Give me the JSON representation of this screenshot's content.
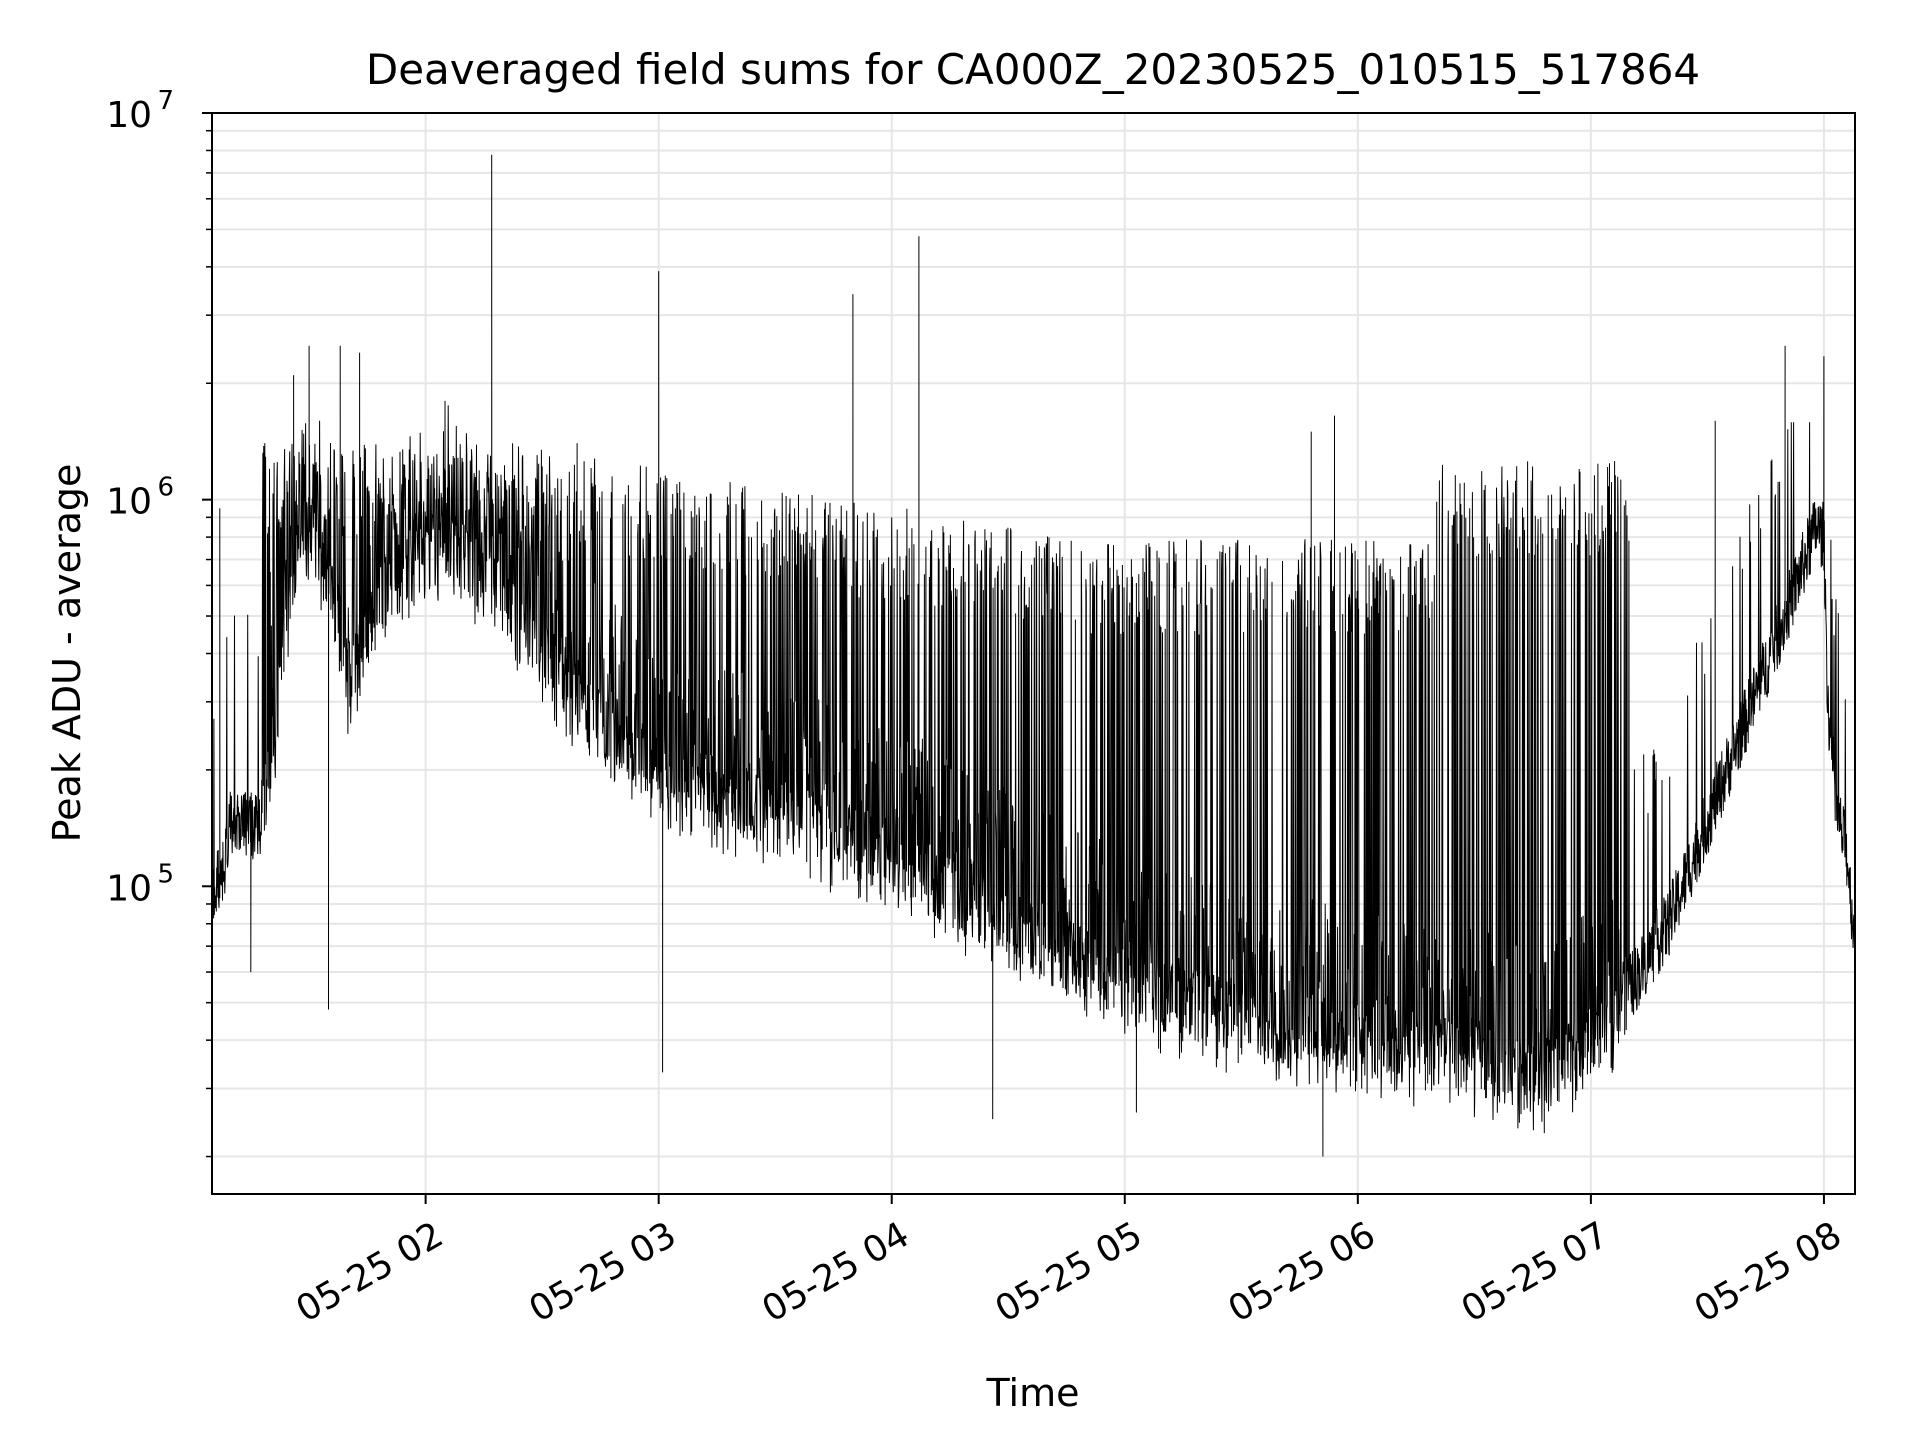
{
  "chart_data": {
    "type": "line",
    "title": "Deaveraged field sums for CA000Z_20230525_010515_517864",
    "xlabel": "Time",
    "ylabel": "Peak ADU - average",
    "yscale": "log",
    "ylim": [
      16000,
      10000000
    ],
    "xlim": [
      "2023-05-25 01:05",
      "2023-05-25 08:08"
    ],
    "y_ticks": [
      {
        "value": 100000,
        "base": "10",
        "exp": "5"
      },
      {
        "value": 1000000,
        "base": "10",
        "exp": "6"
      },
      {
        "value": 10000000,
        "base": "10",
        "exp": "7"
      }
    ],
    "x_ticks": [
      {
        "t": "2023-05-25 02:00",
        "label": "05-25 02"
      },
      {
        "t": "2023-05-25 03:00",
        "label": "05-25 03"
      },
      {
        "t": "2023-05-25 04:00",
        "label": "05-25 04"
      },
      {
        "t": "2023-05-25 05:00",
        "label": "05-25 05"
      },
      {
        "t": "2023-05-25 06:00",
        "label": "05-25 06"
      },
      {
        "t": "2023-05-25 07:00",
        "label": "05-25 07"
      },
      {
        "t": "2023-05-25 08:00",
        "label": "05-25 08"
      }
    ],
    "grid": true,
    "legend": "none",
    "line_color": "#000000",
    "grid_color": "#e6e6e6",
    "series": [
      {
        "baseline": [
          [
            "2023-05-25 01:05",
            95000
          ],
          [
            "2023-05-25 01:08",
            110000
          ],
          [
            "2023-05-25 01:10",
            150000
          ],
          [
            "2023-05-25 01:17",
            140000
          ],
          [
            "2023-05-25 01:20",
            200000
          ],
          [
            "2023-05-25 01:25",
            600000
          ],
          [
            "2023-05-25 01:30",
            850000
          ],
          [
            "2023-05-25 01:35",
            650000
          ],
          [
            "2023-05-25 01:40",
            350000
          ],
          [
            "2023-05-25 01:50",
            600000
          ],
          [
            "2023-05-25 02:05",
            800000
          ],
          [
            "2023-05-25 02:20",
            550000
          ],
          [
            "2023-05-25 02:40",
            300000
          ],
          [
            "2023-05-25 03:00",
            200000
          ],
          [
            "2023-05-25 03:30",
            150000
          ],
          [
            "2023-05-25 04:00",
            120000
          ],
          [
            "2023-05-25 04:30",
            80000
          ],
          [
            "2023-05-25 05:00",
            55000
          ],
          [
            "2023-05-25 05:30",
            45000
          ],
          [
            "2023-05-25 06:00",
            40000
          ],
          [
            "2023-05-25 06:30",
            35000
          ],
          [
            "2023-05-25 06:50",
            32000
          ],
          [
            "2023-05-25 07:05",
            45000
          ],
          [
            "2023-05-25 07:20",
            80000
          ],
          [
            "2023-05-25 07:35",
            200000
          ],
          [
            "2023-05-25 07:50",
            500000
          ],
          [
            "2023-05-25 07:58",
            850000
          ],
          [
            "2023-05-25 08:00",
            800000
          ],
          [
            "2023-05-25 08:01",
            300000
          ],
          [
            "2023-05-25 08:03",
            160000
          ],
          [
            "2023-05-25 08:06",
            120000
          ],
          [
            "2023-05-25 08:08",
            70000
          ]
        ],
        "spikes": [
          [
            "2023-05-25 01:07",
            950000
          ],
          [
            "2023-05-25 01:20",
            650000
          ],
          [
            "2023-05-25 01:26",
            2100000
          ],
          [
            "2023-05-25 01:30",
            2500000
          ],
          [
            "2023-05-25 01:38",
            2500000
          ],
          [
            "2023-05-25 01:43",
            2400000
          ],
          [
            "2023-05-25 02:05",
            1800000
          ],
          [
            "2023-05-25 02:17",
            7800000
          ],
          [
            "2023-05-25 02:39",
            1400000
          ],
          [
            "2023-05-25 03:00",
            3900000
          ],
          [
            "2023-05-25 03:50",
            3400000
          ],
          [
            "2023-05-25 04:07",
            4800000
          ],
          [
            "2023-05-25 05:48",
            1500000
          ],
          [
            "2023-05-25 05:54",
            1650000
          ],
          [
            "2023-05-25 06:57",
            1200000
          ],
          [
            "2023-05-25 07:32",
            1600000
          ],
          [
            "2023-05-25 07:50",
            2500000
          ],
          [
            "2023-05-25 08:00",
            2350000
          ]
        ],
        "dips": [
          [
            "2023-05-25 01:15",
            60000
          ],
          [
            "2023-05-25 01:35",
            48000
          ],
          [
            "2023-05-25 03:01",
            33000
          ],
          [
            "2023-05-25 04:26",
            25000
          ],
          [
            "2023-05-25 05:03",
            26000
          ],
          [
            "2023-05-25 05:51",
            20000
          ],
          [
            "2023-05-25 06:48",
            23000
          ]
        ]
      }
    ]
  }
}
